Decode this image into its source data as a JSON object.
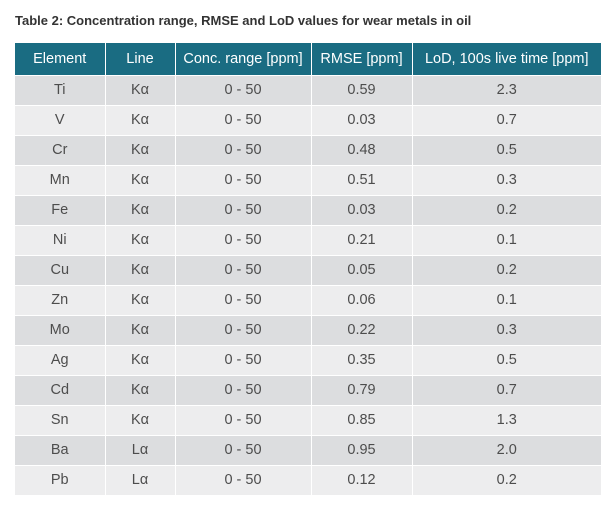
{
  "caption": "Table 2: Concentration range, RMSE and LoD values for wear metals in oil",
  "table": {
    "headers": [
      "Element",
      "Line",
      "Conc. range [ppm]",
      "RMSE [ppm]",
      "LoD, 100s live time [ppm]"
    ],
    "rows": [
      [
        "Ti",
        "Kα",
        "0 - 50",
        "0.59",
        "2.3"
      ],
      [
        "V",
        "Kα",
        "0 - 50",
        "0.03",
        "0.7"
      ],
      [
        "Cr",
        "Kα",
        "0 - 50",
        "0.48",
        "0.5"
      ],
      [
        "Mn",
        "Kα",
        "0 - 50",
        "0.51",
        "0.3"
      ],
      [
        "Fe",
        "Kα",
        "0 - 50",
        "0.03",
        "0.2"
      ],
      [
        "Ni",
        "Kα",
        "0 - 50",
        "0.21",
        "0.1"
      ],
      [
        "Cu",
        "Kα",
        "0 - 50",
        "0.05",
        "0.2"
      ],
      [
        "Zn",
        "Kα",
        "0 - 50",
        "0.06",
        "0.1"
      ],
      [
        "Mo",
        "Kα",
        "0 - 50",
        "0.22",
        "0.3"
      ],
      [
        "Ag",
        "Kα",
        "0 - 50",
        "0.35",
        "0.5"
      ],
      [
        "Cd",
        "Kα",
        "0 - 50",
        "0.79",
        "0.7"
      ],
      [
        "Sn",
        "Kα",
        "0 - 50",
        "0.85",
        "1.3"
      ],
      [
        "Ba",
        "Lα",
        "0 - 50",
        "0.95",
        "2.0"
      ],
      [
        "Pb",
        "Lα",
        "0 - 50",
        "0.12",
        "0.2"
      ]
    ]
  },
  "colors": {
    "header_background": "#1a6c82",
    "header_text": "#ffffff",
    "row_dark": "#dcdddf",
    "row_light": "#ededee",
    "body_text": "#4d4d4d"
  }
}
